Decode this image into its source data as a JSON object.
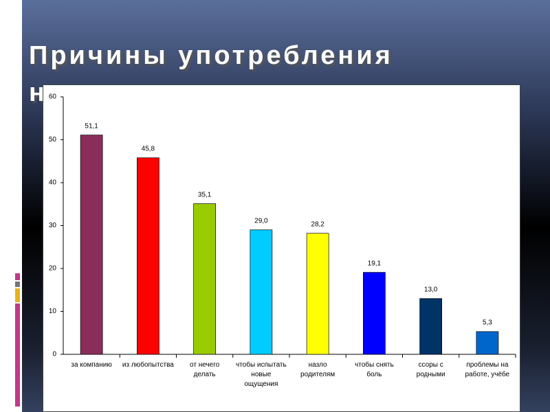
{
  "title": "Причины употребления наркотиков",
  "chart_data": {
    "type": "bar",
    "categories": [
      "за компанию",
      "из любопытства",
      "от нечего делать",
      "чтобы испытать новые ощущения",
      "назло родителям",
      "чтобы снять боль",
      "ссоры с родными",
      "проблемы на работе, учёбе"
    ],
    "values": [
      51.1,
      45.8,
      35.1,
      29.0,
      28.2,
      19.1,
      13.0,
      5.3
    ],
    "value_labels": [
      "51,1",
      "45,8",
      "35,1",
      "29,0",
      "28,2",
      "19,1",
      "13,0",
      "5,3"
    ],
    "colors": [
      "#8b2d5a",
      "#ff0000",
      "#99cc00",
      "#00ccff",
      "#ffff00",
      "#0000ff",
      "#003366",
      "#0066cc"
    ],
    "ylim": [
      0,
      60
    ],
    "yticks": [
      0,
      10,
      20,
      30,
      40,
      50,
      60
    ]
  }
}
